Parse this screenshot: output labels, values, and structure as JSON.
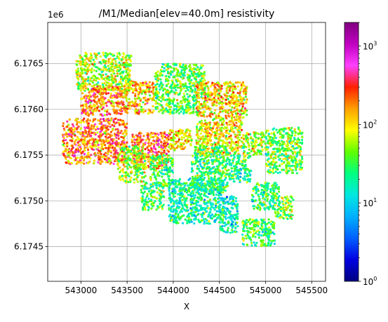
{
  "chart_data": {
    "type": "scatter",
    "title": "/M1/Median[elev=40.0m] resistivity",
    "xlabel": "X",
    "ylabel": "",
    "y_offset_label": "1e6",
    "xlim": [
      542640,
      545650
    ],
    "ylim": [
      6174120,
      6176950
    ],
    "x_ticks": [
      543000,
      543500,
      544000,
      544500,
      545000,
      545500
    ],
    "x_tick_labels": [
      "543000",
      "543500",
      "544000",
      "544500",
      "545000",
      "545500"
    ],
    "y_ticks": [
      6174500,
      6175000,
      6175500,
      6176000,
      6176500
    ],
    "y_tick_labels": [
      "6.1745",
      "6.1750",
      "6.1755",
      "6.1760",
      "6.1765"
    ],
    "grid": true,
    "colorbar": {
      "label": "",
      "scale": "log",
      "range": [
        1,
        2000
      ],
      "ticks": [
        1,
        10,
        100,
        1000
      ],
      "tick_bases": [
        "10",
        "10",
        "10",
        "10"
      ],
      "tick_exponents": [
        "0",
        "1",
        "2",
        "3"
      ],
      "colormap": "gist_ncar-like",
      "colors": [
        "#000080",
        "#0000e0",
        "#0060ff",
        "#00b0ff",
        "#00e8e0",
        "#00ff80",
        "#60ff00",
        "#ffff00",
        "#ffa000",
        "#ff2000",
        "#ff40ff",
        "#c000c0",
        "#800080"
      ]
    },
    "regions": [
      {
        "x": [
          542950,
          543550
        ],
        "y": [
          6176200,
          6176620
        ],
        "median": 60
      },
      {
        "x": [
          543000,
          543450
        ],
        "y": [
          6175930,
          6176260
        ],
        "median": 180
      },
      {
        "x": [
          543450,
          543800
        ],
        "y": [
          6175950,
          6176300
        ],
        "median": 120
      },
      {
        "x": [
          543800,
          544350
        ],
        "y": [
          6175950,
          6176500
        ],
        "median": 40
      },
      {
        "x": [
          544250,
          544800
        ],
        "y": [
          6175900,
          6176300
        ],
        "median": 110
      },
      {
        "x": [
          542800,
          543500
        ],
        "y": [
          6175400,
          6175900
        ],
        "median": 200
      },
      {
        "x": [
          543550,
          543950
        ],
        "y": [
          6175350,
          6175750
        ],
        "median": 250
      },
      {
        "x": [
          543950,
          544200
        ],
        "y": [
          6175550,
          6175780
        ],
        "median": 90
      },
      {
        "x": [
          544250,
          544750
        ],
        "y": [
          6175500,
          6175900
        ],
        "median": 100
      },
      {
        "x": [
          544750,
          545000
        ],
        "y": [
          6175500,
          6175750
        ],
        "median": 60
      },
      {
        "x": [
          543400,
          543700
        ],
        "y": [
          6175200,
          6175600
        ],
        "median": 50
      },
      {
        "x": [
          543750,
          544000
        ],
        "y": [
          6175150,
          6175500
        ],
        "median": 30
      },
      {
        "x": [
          544200,
          544600
        ],
        "y": [
          6175100,
          6175600
        ],
        "median": 30
      },
      {
        "x": [
          544600,
          544850
        ],
        "y": [
          6175200,
          6175500
        ],
        "median": 25
      },
      {
        "x": [
          545000,
          545400
        ],
        "y": [
          6175300,
          6175800
        ],
        "median": 40
      },
      {
        "x": [
          543650,
          543900
        ],
        "y": [
          6174900,
          6175200
        ],
        "median": 35
      },
      {
        "x": [
          543950,
          544550
        ],
        "y": [
          6174750,
          6175250
        ],
        "median": 20
      },
      {
        "x": [
          544850,
          545150
        ],
        "y": [
          6174900,
          6175200
        ],
        "median": 25
      },
      {
        "x": [
          544500,
          544700
        ],
        "y": [
          6174650,
          6175050
        ],
        "median": 15
      },
      {
        "x": [
          544750,
          545100
        ],
        "y": [
          6174500,
          6174800
        ],
        "median": 30
      },
      {
        "x": [
          545100,
          545300
        ],
        "y": [
          6174800,
          6175050
        ],
        "median": 45
      }
    ]
  }
}
